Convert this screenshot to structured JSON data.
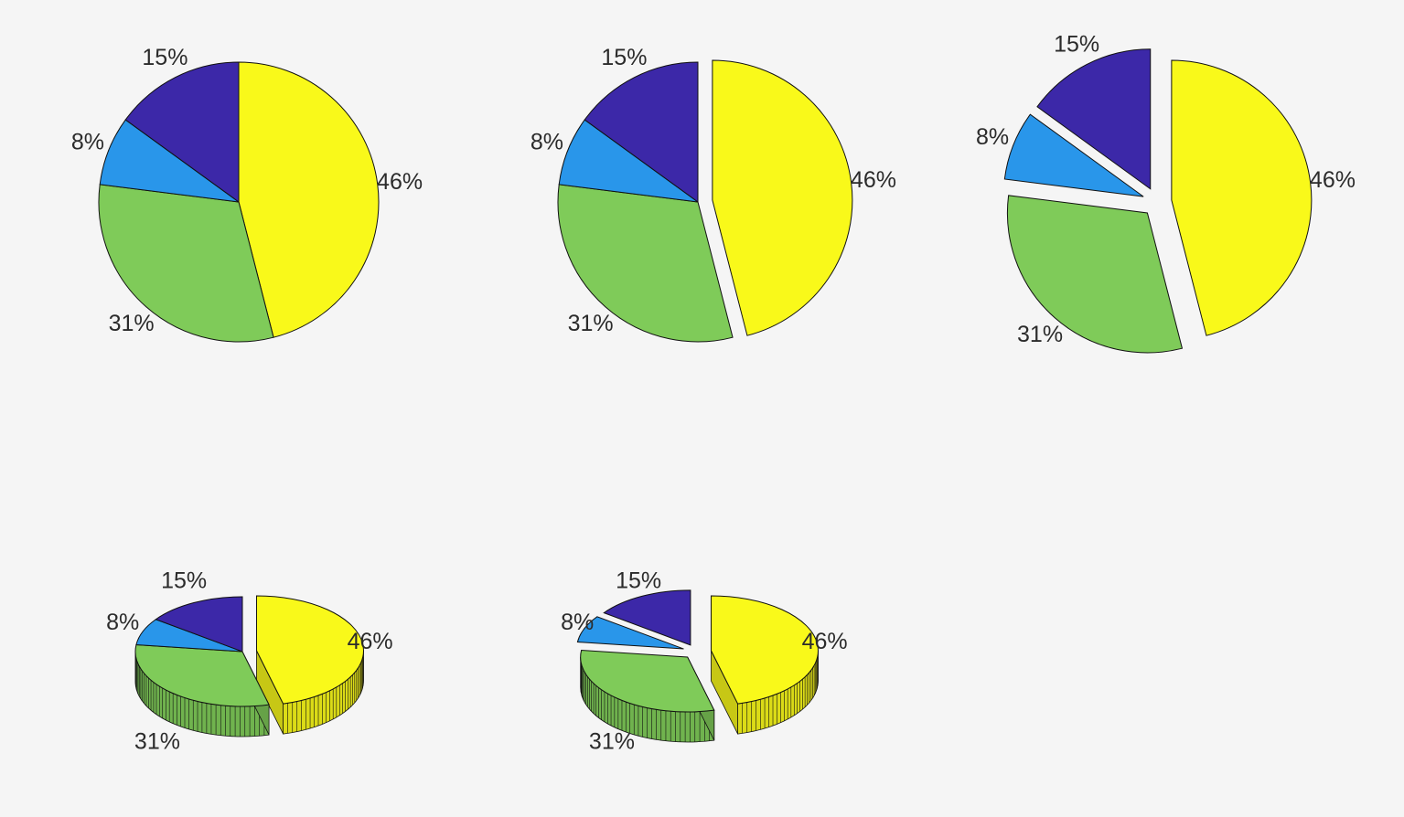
{
  "chart_data": [
    {
      "type": "pie",
      "values": [
        46,
        31,
        8,
        15
      ],
      "labels": [
        "46%",
        "31%",
        "8%",
        "15%"
      ],
      "colors": [
        "#f9f91a",
        "#7fcb59",
        "#2996ea",
        "#3c28a8"
      ],
      "explode": [
        0,
        0,
        0,
        0
      ],
      "view": "2d"
    },
    {
      "type": "pie",
      "values": [
        46,
        31,
        8,
        15
      ],
      "labels": [
        "46%",
        "31%",
        "8%",
        "15%"
      ],
      "colors": [
        "#f9f91a",
        "#7fcb59",
        "#2996ea",
        "#3c28a8"
      ],
      "explode": [
        1,
        0,
        0,
        0
      ],
      "view": "2d"
    },
    {
      "type": "pie",
      "values": [
        46,
        31,
        8,
        15
      ],
      "labels": [
        "46%",
        "31%",
        "8%",
        "15%"
      ],
      "colors": [
        "#f9f91a",
        "#7fcb59",
        "#2996ea",
        "#3c28a8"
      ],
      "explode": [
        1,
        1,
        1,
        1
      ],
      "view": "2d"
    },
    {
      "type": "pie",
      "values": [
        46,
        31,
        8,
        15
      ],
      "labels": [
        "46%",
        "31%",
        "8%",
        "15%"
      ],
      "colors": [
        "#f9f91a",
        "#7fcb59",
        "#2996ea",
        "#3c28a8"
      ],
      "explode": [
        1,
        0,
        0,
        0
      ],
      "view": "3d"
    },
    {
      "type": "pie",
      "values": [
        46,
        31,
        8,
        15
      ],
      "labels": [
        "46%",
        "31%",
        "8%",
        "15%"
      ],
      "colors": [
        "#f9f91a",
        "#7fcb59",
        "#2996ea",
        "#3c28a8"
      ],
      "explode": [
        1,
        1,
        1,
        1
      ],
      "view": "3d"
    }
  ]
}
